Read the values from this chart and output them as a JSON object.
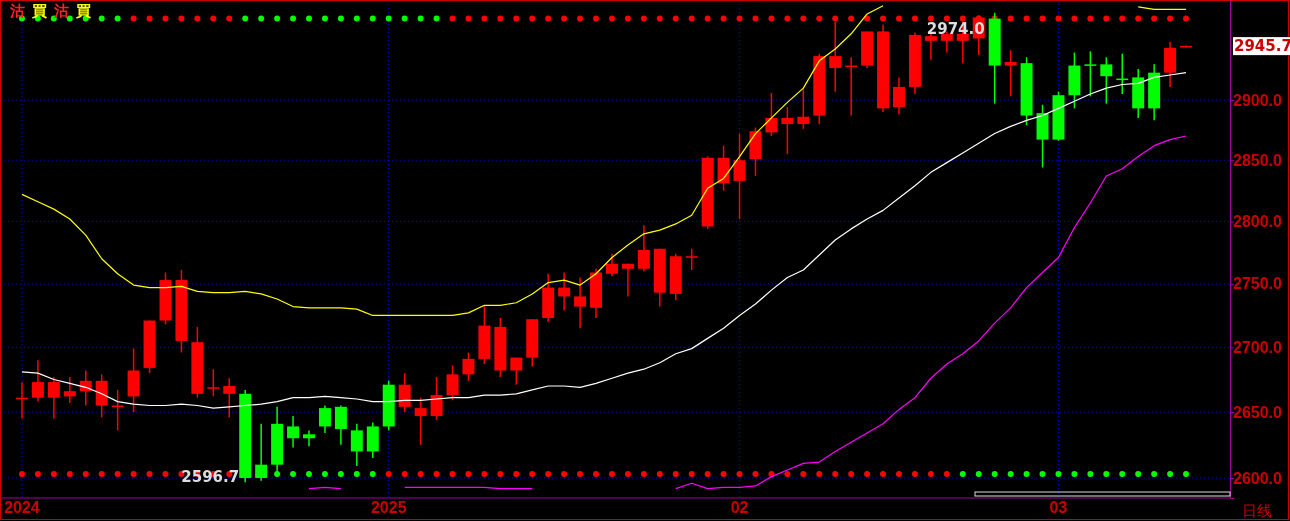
{
  "chart_data": {
    "type": "candlestick",
    "categories": [
      "2024",
      null,
      null,
      null,
      null,
      null,
      null,
      null,
      null,
      null,
      null,
      null,
      null,
      null,
      null,
      null,
      null,
      null,
      null,
      null,
      null,
      null,
      null,
      "2025",
      null,
      null,
      null,
      null,
      null,
      null,
      null,
      null,
      null,
      null,
      null,
      null,
      null,
      null,
      null,
      null,
      null,
      null,
      null,
      null,
      null,
      "02",
      null,
      null,
      null,
      null,
      null,
      null,
      null,
      null,
      null,
      null,
      null,
      null,
      null,
      null,
      null,
      null,
      null,
      null,
      null,
      "03",
      null,
      null,
      null,
      null,
      null,
      null,
      null,
      null
    ],
    "ohlc": [
      [
        2660,
        2673,
        2645,
        2661
      ],
      [
        2661,
        2690,
        2658,
        2673
      ],
      [
        2661,
        2677,
        2645,
        2673
      ],
      [
        2662,
        2677,
        2657,
        2666
      ],
      [
        2666,
        2682,
        2655,
        2674
      ],
      [
        2655,
        2679,
        2646,
        2674
      ],
      [
        2655,
        2667,
        2636,
        2655
      ],
      [
        2662,
        2699,
        2650,
        2682
      ],
      [
        2684,
        2721,
        2680,
        2721
      ],
      [
        2721,
        2759,
        2718,
        2753
      ],
      [
        2705,
        2761,
        2696,
        2753
      ],
      [
        2664,
        2716,
        2661,
        2704
      ],
      [
        2669,
        2683,
        2662,
        2669
      ],
      [
        2664,
        2676,
        2646,
        2670
      ],
      [
        2664,
        2667,
        2596.7,
        2600
      ],
      [
        2610,
        2641,
        2598,
        2600
      ],
      [
        2641,
        2654,
        2605,
        2610
      ],
      [
        2639,
        2647,
        2623,
        2630
      ],
      [
        2633,
        2636,
        2624,
        2630
      ],
      [
        2653,
        2655,
        2634,
        2639
      ],
      [
        2654,
        2655,
        2625,
        2637
      ],
      [
        2636,
        2641,
        2609,
        2620
      ],
      [
        2639,
        2642,
        2615,
        2620
      ],
      [
        2671,
        2674,
        2636,
        2639
      ],
      [
        2654,
        2680,
        2650,
        2671
      ],
      [
        2647,
        2661,
        2625,
        2653
      ],
      [
        2647,
        2677,
        2644,
        2663
      ],
      [
        2663,
        2686,
        2659,
        2679
      ],
      [
        2679,
        2696,
        2674,
        2691
      ],
      [
        2691,
        2733,
        2687,
        2717
      ],
      [
        2682,
        2723,
        2677,
        2716
      ],
      [
        2682,
        2692,
        2671,
        2692
      ],
      [
        2692,
        2722,
        2685,
        2722
      ],
      [
        2723,
        2758,
        2720,
        2747
      ],
      [
        2740,
        2759,
        2729,
        2747
      ],
      [
        2732,
        2755,
        2715,
        2740
      ],
      [
        2731,
        2762,
        2723,
        2759
      ],
      [
        2758,
        2774,
        2756,
        2766
      ],
      [
        2762,
        2766,
        2740,
        2766
      ],
      [
        2762,
        2797,
        2760,
        2777
      ],
      [
        2743,
        2778,
        2732,
        2778
      ],
      [
        2742,
        2774,
        2737,
        2772
      ],
      [
        2772,
        2778,
        2761,
        2772
      ],
      [
        2796,
        2853,
        2794,
        2852
      ],
      [
        2831,
        2862,
        2825,
        2852
      ],
      [
        2833,
        2872,
        2802,
        2850
      ],
      [
        2851,
        2877,
        2837,
        2874
      ],
      [
        2873,
        2906,
        2870,
        2885
      ],
      [
        2880,
        2894,
        2855,
        2885
      ],
      [
        2880,
        2910,
        2876,
        2886
      ],
      [
        2887,
        2939,
        2880,
        2937
      ],
      [
        2927,
        2966,
        2907,
        2937
      ],
      [
        2929,
        2936,
        2887,
        2929
      ],
      [
        2929,
        2958,
        2927,
        2958
      ],
      [
        2893,
        2964,
        2890,
        2958
      ],
      [
        2894,
        2919,
        2888,
        2911
      ],
      [
        2911,
        2957,
        2905,
        2955
      ],
      [
        2950,
        2957,
        2934,
        2954
      ],
      [
        2950,
        2958,
        2940,
        2956
      ],
      [
        2950,
        2967,
        2931,
        2956
      ],
      [
        2952,
        2972,
        2938,
        2970
      ],
      [
        2969,
        2974,
        2897,
        2929
      ],
      [
        2929,
        2942,
        2903,
        2932
      ],
      [
        2931,
        2936,
        2879,
        2887
      ],
      [
        2889,
        2896,
        2844,
        2867
      ],
      [
        2904,
        2907,
        2866,
        2867
      ],
      [
        2929,
        2940,
        2893,
        2904
      ],
      [
        2930,
        2941,
        2903,
        2929
      ],
      [
        2930,
        2936,
        2897,
        2920
      ],
      [
        2918,
        2939,
        2905,
        2917
      ],
      [
        2919,
        2926,
        2885,
        2893
      ],
      [
        2923,
        2930,
        2883,
        2893
      ],
      [
        2923,
        2949,
        2911,
        2944
      ],
      [
        2945,
        2946,
        2944,
        2945.7
      ]
    ],
    "colors": [
      "#ff0000",
      "#ff0000",
      "#ff0000",
      "#ff0000",
      "#ff0000",
      "#ff0000",
      "#ff0000",
      "#ff0000",
      "#ff0000",
      "#ff0000",
      "#ff0000",
      "#ff0000",
      "#ff0000",
      "#ff0000",
      "#00ff00",
      "#00ff00",
      "#00ff00",
      "#00ff00",
      "#00ff00",
      "#00ff00",
      "#00ff00",
      "#00ff00",
      "#00ff00",
      "#00ff00",
      "#ff0000",
      "#ff0000",
      "#ff0000",
      "#ff0000",
      "#ff0000",
      "#ff0000",
      "#ff0000",
      "#ff0000",
      "#ff0000",
      "#ff0000",
      "#ff0000",
      "#ff0000",
      "#ff0000",
      "#ff0000",
      "#ff0000",
      "#ff0000",
      "#ff0000",
      "#ff0000",
      "#ff0000",
      "#ff0000",
      "#ff0000",
      "#ff0000",
      "#ff0000",
      "#ff0000",
      "#ff0000",
      "#ff0000",
      "#ff0000",
      "#ff0000",
      "#ff0000",
      "#ff0000",
      "#ff0000",
      "#ff0000",
      "#ff0000",
      "#ff0000",
      "#ff0000",
      "#ff0000",
      "#ff0000",
      "#00ff00",
      "#ff0000",
      "#00ff00",
      "#00ff00",
      "#00ff00",
      "#00ff00",
      "#00ff00",
      "#00ff00",
      "#00ff00",
      "#00ff00",
      "#00ff00",
      "#ff0000",
      "#ff0000"
    ],
    "series": [
      {
        "type": "line",
        "color": "#ffff00",
        "values": [
          2822,
          2816,
          2810,
          2802,
          2789,
          2770,
          2758,
          2749,
          2747,
          2747,
          2748,
          2744,
          2743,
          2743,
          2744,
          2742,
          2738,
          2732,
          2731,
          2731,
          2731,
          2730,
          2725,
          2725,
          2725,
          2725,
          2725,
          2725,
          2727,
          2733,
          2733,
          2735,
          2742,
          2751,
          2753,
          2749,
          2758,
          2771,
          2781,
          2790,
          2793,
          2798,
          2805,
          2827,
          2835,
          2853,
          2872,
          2885,
          2898,
          2910,
          2933,
          2943,
          2956,
          2973,
          2980,
          null,
          null,
          null,
          null,
          null,
          null,
          null,
          null,
          null,
          null,
          null,
          null,
          null,
          null,
          null,
          2979,
          2977,
          2977,
          2977
        ]
      },
      {
        "type": "line",
        "color": "#ffffff",
        "values": [
          2681,
          2680,
          2675,
          2672,
          2669,
          2664,
          2658,
          2656,
          2655,
          2655,
          2656,
          2655,
          2653,
          2654,
          2655,
          2656,
          2658,
          2661,
          2661,
          2662,
          2661,
          2660,
          2658,
          2658,
          2659,
          2659,
          2660,
          2661,
          2661,
          2663,
          2663,
          2664,
          2667,
          2670,
          2670,
          2669,
          2672,
          2676,
          2680,
          2683,
          2688,
          2695,
          2699,
          2707,
          2715,
          2725,
          2734,
          2745,
          2755,
          2761,
          2773,
          2785,
          2794,
          2802,
          2809,
          2819,
          2829,
          2840,
          2848,
          2856,
          2864,
          2872,
          2878,
          2883,
          2887,
          2893,
          2899,
          2905,
          2910,
          2913,
          2914,
          2919,
          2921,
          2923
        ]
      },
      {
        "type": "line",
        "color": "#ff00ff",
        "values": [
          null,
          null,
          null,
          null,
          null,
          null,
          null,
          null,
          null,
          null,
          null,
          null,
          null,
          null,
          null,
          null,
          null,
          null,
          2592,
          2593,
          2592,
          null,
          null,
          null,
          2593,
          2593,
          2593,
          2593,
          2593,
          2593,
          2592,
          2592,
          2592,
          null,
          null,
          null,
          null,
          null,
          null,
          null,
          null,
          2592,
          2596,
          2592,
          2593,
          2593,
          2594,
          2601,
          2606,
          2611,
          2612,
          2620,
          2627,
          2634,
          2641,
          2652,
          2661,
          2676,
          2687,
          2695,
          2705,
          2719,
          2731,
          2747,
          2759,
          2771,
          2795,
          2815,
          2837,
          2843,
          2853,
          2862,
          2867,
          2870
        ]
      },
      {
        "type": "scatter",
        "marker": "circle",
        "values": [
          2969,
          2969,
          2969,
          2969,
          2969,
          2969,
          2969,
          2969,
          2969,
          2969,
          2969,
          2969,
          2969,
          2969,
          2969,
          2969,
          2969,
          2969,
          2969,
          2969,
          2969,
          2969,
          2969,
          2969,
          2969,
          2969,
          2969,
          2969,
          2969,
          2969,
          2969,
          2969,
          2969,
          2969,
          2969,
          2969,
          2969,
          2969,
          2969,
          2969,
          2969,
          2969,
          2969,
          2969,
          2969,
          2969,
          2969,
          2969,
          2969,
          2969,
          2969,
          2969,
          2969,
          2969,
          2969,
          2969,
          2969,
          2969,
          2969,
          2969,
          2969,
          2969,
          2969,
          2969,
          2969,
          2969,
          2969,
          2969,
          2969,
          2969,
          2969,
          2969,
          2969,
          2969
        ],
        "colors": [
          "#00ff00",
          "#00ff00",
          "#00ff00",
          "#00ff00",
          "#00ff00",
          "#00ff00",
          "#00ff00",
          "#ff0000",
          "#ff0000",
          "#ff0000",
          "#ff0000",
          "#ff0000",
          "#ff0000",
          "#ff0000",
          "#00ff00",
          "#00ff00",
          "#00ff00",
          "#00ff00",
          "#00ff00",
          "#00ff00",
          "#00ff00",
          "#00ff00",
          "#00ff00",
          "#00ff00",
          "#00ff00",
          "#00ff00",
          "#00ff00",
          "#ff0000",
          "#ff0000",
          "#ff0000",
          "#ff0000",
          "#ff0000",
          "#ff0000",
          "#ff0000",
          "#ff0000",
          "#ff0000",
          "#ff0000",
          "#ff0000",
          "#ff0000",
          "#ff0000",
          "#ff0000",
          "#ff0000",
          "#ff0000",
          "#ff0000",
          "#ff0000",
          "#ff0000",
          "#ff0000",
          "#ff0000",
          "#ff0000",
          "#ff0000",
          "#ff0000",
          "#ff0000",
          "#ff0000",
          "#ff0000",
          "#ff0000",
          "#ff0000",
          "#ff0000",
          "#ff0000",
          "#ff0000",
          "#ff0000",
          "#ff0000",
          "#ff0000",
          "#ff0000",
          "#ff0000",
          "#ff0000",
          "#ff0000",
          "#ff0000",
          "#ff0000",
          "#ff0000",
          "#ff0000",
          "#ff0000",
          "#ff0000",
          "#ff0000",
          "#ff0000"
        ]
      },
      {
        "type": "scatter",
        "marker": "circle",
        "values": [
          2603,
          2603,
          2603,
          2603,
          2603,
          2603,
          2603,
          2603,
          2603,
          2603,
          2603,
          2603,
          2603,
          2603,
          null,
          null,
          2603,
          2603,
          2603,
          2603,
          2603,
          2603,
          2603,
          2603,
          2603,
          2603,
          2603,
          2603,
          2603,
          2603,
          2603,
          2603,
          2603,
          2603,
          2603,
          2603,
          2603,
          2603,
          2603,
          2603,
          2603,
          2603,
          2603,
          2603,
          2603,
          2603,
          2603,
          2603,
          2603,
          2603,
          2603,
          2603,
          2603,
          2603,
          2603,
          2603,
          2603,
          2603,
          2603,
          2603,
          2603,
          2603,
          2603,
          2603,
          2603,
          2603,
          2603,
          2603,
          2603,
          2603,
          2603,
          2603,
          2603,
          2603
        ],
        "colors": [
          "#ff0000",
          "#ff0000",
          "#ff0000",
          "#ff0000",
          "#ff0000",
          "#ff0000",
          "#ff0000",
          "#ff0000",
          "#ff0000",
          "#ff0000",
          "#ff0000",
          "#ff0000",
          "#ff0000",
          "#ff0000",
          null,
          null,
          "#00ff00",
          "#00ff00",
          "#00ff00",
          "#00ff00",
          "#00ff00",
          "#00ff00",
          "#00ff00",
          "#ff0000",
          "#ff0000",
          "#ff0000",
          "#ff0000",
          "#ff0000",
          "#ff0000",
          "#ff0000",
          "#ff0000",
          "#ff0000",
          "#ff0000",
          "#ff0000",
          "#ff0000",
          "#ff0000",
          "#ff0000",
          "#ff0000",
          "#ff0000",
          "#ff0000",
          "#ff0000",
          "#ff0000",
          "#ff0000",
          "#ff0000",
          "#ff0000",
          "#ff0000",
          "#ff0000",
          "#ff0000",
          "#ff0000",
          "#ff0000",
          "#ff0000",
          "#ff0000",
          "#ff0000",
          "#ff0000",
          "#ff0000",
          "#ff0000",
          "#ff0000",
          "#ff0000",
          "#ff0000",
          "#00ff00",
          "#00ff00",
          "#00ff00",
          "#00ff00",
          "#00ff00",
          "#00ff00",
          "#00ff00",
          "#00ff00",
          "#00ff00",
          "#00ff00",
          "#00ff00",
          "#00ff00",
          "#00ff00",
          "#00ff00",
          "#00ff00"
        ]
      }
    ],
    "ylim": [
      2585,
      2985
    ],
    "yticks": [
      {
        "value": 2600,
        "label": "2600.0"
      },
      {
        "value": 2650,
        "label": "2650.0"
      },
      {
        "value": 2700,
        "label": "2700.0"
      },
      {
        "value": 2750,
        "label": "2750.0"
      },
      {
        "value": 2800,
        "label": "2800.0"
      },
      {
        "value": 2850,
        "label": "2850.0"
      },
      {
        "value": 2900,
        "label": "2900.0"
      }
    ],
    "log": "y",
    "grid": true,
    "annotations": [
      "2974.0",
      "2596.7",
      "2945.7",
      "沽",
      "買",
      "沽",
      "買",
      "日线"
    ]
  }
}
